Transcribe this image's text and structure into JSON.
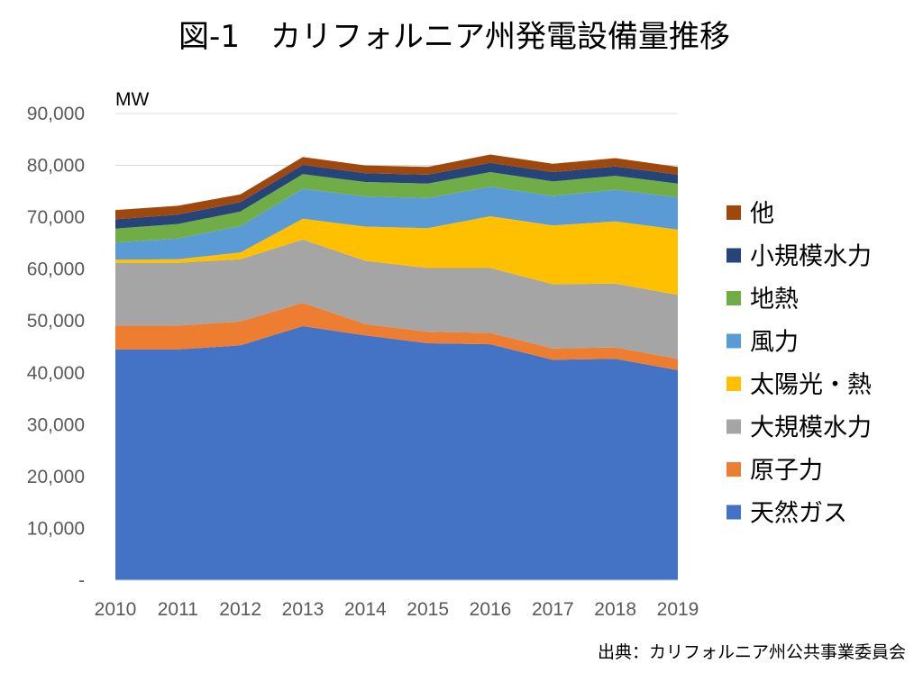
{
  "chart_data": {
    "type": "area",
    "title": "図-1　カリフォルニア州発電設備量推移",
    "unit_label": "MW",
    "source": "出典：カリフォルニア州公共事業委員会",
    "x": [
      "2010",
      "2011",
      "2012",
      "2013",
      "2014",
      "2015",
      "2016",
      "2017",
      "2018",
      "2019"
    ],
    "ylim": [
      0,
      90000
    ],
    "y_ticks": [
      "-",
      "10,000",
      "20,000",
      "30,000",
      "40,000",
      "50,000",
      "60,000",
      "70,000",
      "80,000",
      "90,000"
    ],
    "y_tick_values": [
      0,
      10000,
      20000,
      30000,
      40000,
      50000,
      60000,
      70000,
      80000,
      90000
    ],
    "stacked": true,
    "grid": true,
    "legend_position": "right",
    "series": [
      {
        "name": "天然ガス",
        "color": "#4472C4",
        "values": [
          44500,
          44500,
          45300,
          49000,
          47200,
          45700,
          45500,
          42500,
          42700,
          40500
        ]
      },
      {
        "name": "原子力",
        "color": "#ED7D31",
        "values": [
          4600,
          4600,
          4600,
          4500,
          2200,
          2200,
          2200,
          2200,
          2200,
          2200
        ]
      },
      {
        "name": "大規模水力",
        "color": "#A5A5A5",
        "values": [
          12100,
          12100,
          12000,
          12200,
          12200,
          12300,
          12500,
          12400,
          12300,
          12300
        ]
      },
      {
        "name": "太陽光・熱",
        "color": "#FFC000",
        "values": [
          600,
          700,
          1300,
          4000,
          6600,
          7700,
          10000,
          11300,
          12000,
          12600
        ]
      },
      {
        "name": "風力",
        "color": "#5B9BD5",
        "values": [
          3300,
          4000,
          5100,
          5800,
          5800,
          5800,
          5700,
          5700,
          6100,
          6200
        ]
      },
      {
        "name": "地熱",
        "color": "#70AD47",
        "values": [
          2700,
          2800,
          2800,
          2800,
          2800,
          2800,
          2800,
          2800,
          2700,
          2700
        ]
      },
      {
        "name": "小規模水力",
        "color": "#264478",
        "values": [
          1800,
          1800,
          1800,
          1800,
          1700,
          1700,
          1800,
          1800,
          1800,
          1700
        ]
      },
      {
        "name": "他",
        "color": "#9E480E",
        "values": [
          1800,
          1700,
          1500,
          1500,
          1500,
          1500,
          1600,
          1600,
          1600,
          1500
        ]
      }
    ]
  }
}
